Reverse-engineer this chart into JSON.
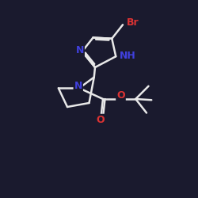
{
  "background_color": "#1a1a2e",
  "bond_color": "#e8e8e8",
  "N_color": "#4040dd",
  "O_color": "#dd3333",
  "Br_color": "#dd3333",
  "figsize": [
    2.5,
    2.5
  ],
  "dpi": 100,
  "xlim": [
    0,
    10
  ],
  "ylim": [
    0,
    10
  ],
  "lw": 1.8
}
